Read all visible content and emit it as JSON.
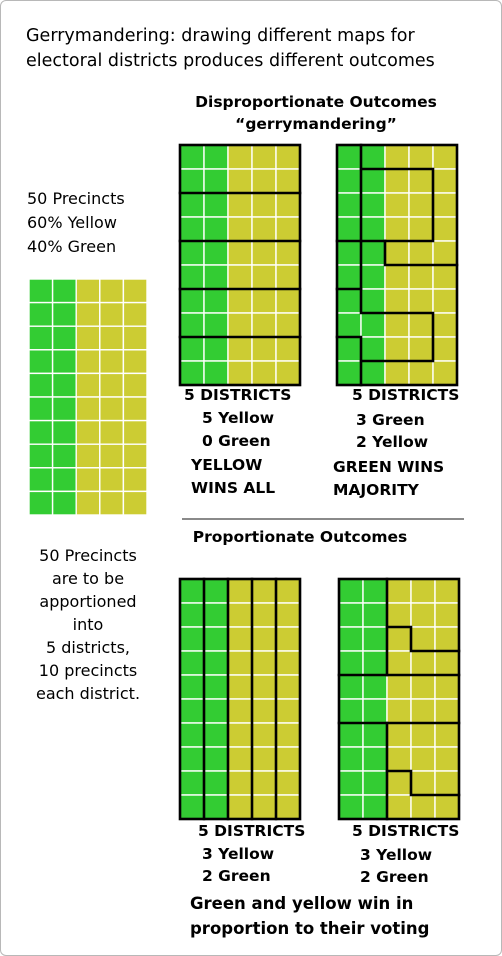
{
  "title_lines": [
    "Gerrymandering: drawing different maps for",
    "electoral districts produces different outcomes"
  ],
  "colors": {
    "green": "#33cc33",
    "yellow": "#cccc33",
    "grid_line": "#ffffff",
    "border": "#000000",
    "divider": "#8a8a8a"
  },
  "left": {
    "summary_lines": [
      "50 Precincts",
      "60% Yellow",
      "40% Green"
    ],
    "grid": {
      "rows": 10,
      "cols": 5,
      "green_cols": 2
    },
    "description_lines": [
      "50 Precincts",
      "are to be",
      "apportioned",
      "into",
      "5 districts,",
      "10 precincts",
      "each district."
    ]
  },
  "disproportionate": {
    "heading_lines": [
      "Disproportionate Outcomes",
      "“gerrymandering”"
    ],
    "maps": [
      {
        "districts_label": "5 DISTRICTS",
        "result_lines": [
          "5 Yellow",
          "0 Green"
        ],
        "verdict_lines": [
          "YELLOW",
          "WINS ALL"
        ]
      },
      {
        "districts_label": "5 DISTRICTS",
        "result_lines": [
          "3 Green",
          "2 Yellow"
        ],
        "verdict_lines": [
          "GREEN WINS",
          "MAJORITY"
        ]
      }
    ]
  },
  "proportionate": {
    "heading": "Proportionate Outcomes",
    "maps": [
      {
        "districts_label": "5 DISTRICTS",
        "result_lines": [
          "3 Yellow",
          "2 Green"
        ]
      },
      {
        "districts_label": "5 DISTRICTS",
        "result_lines": [
          "3 Yellow",
          "2 Green"
        ]
      }
    ],
    "verdict_lines": [
      "Green and yellow win in",
      "proportion to their voting"
    ]
  }
}
